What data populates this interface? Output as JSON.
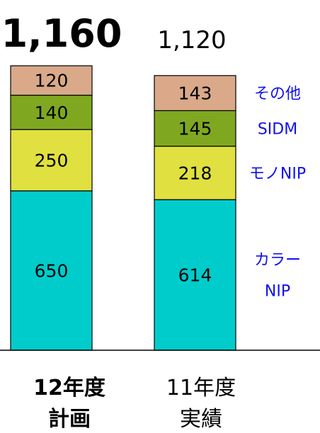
{
  "chart_data": {
    "type": "bar",
    "stacked": true,
    "categories": [
      [
        "12年度",
        "計画"
      ],
      [
        "11年度",
        "実績"
      ]
    ],
    "totals": [
      "1,160",
      "1,120"
    ],
    "series": [
      {
        "name": "カラーNIP",
        "legend_lines": [
          "カラー",
          "NIP"
        ],
        "values": [
          650,
          614
        ],
        "color": "#00CCCC"
      },
      {
        "name": "モノNIP",
        "legend_lines": [
          "モノNIP"
        ],
        "values": [
          250,
          218
        ],
        "color": "#E0E040"
      },
      {
        "name": "SIDM",
        "legend_lines": [
          "SIDM"
        ],
        "values": [
          140,
          145
        ],
        "color": "#7FA820"
      },
      {
        "name": "その他",
        "legend_lines": [
          "その他"
        ],
        "values": [
          120,
          143
        ],
        "color": "#D9A98A"
      }
    ],
    "legend_color": "#1010EE",
    "ylim": [
      0,
      1160
    ],
    "grid": false,
    "legend_position": "right, aligned to segments"
  }
}
